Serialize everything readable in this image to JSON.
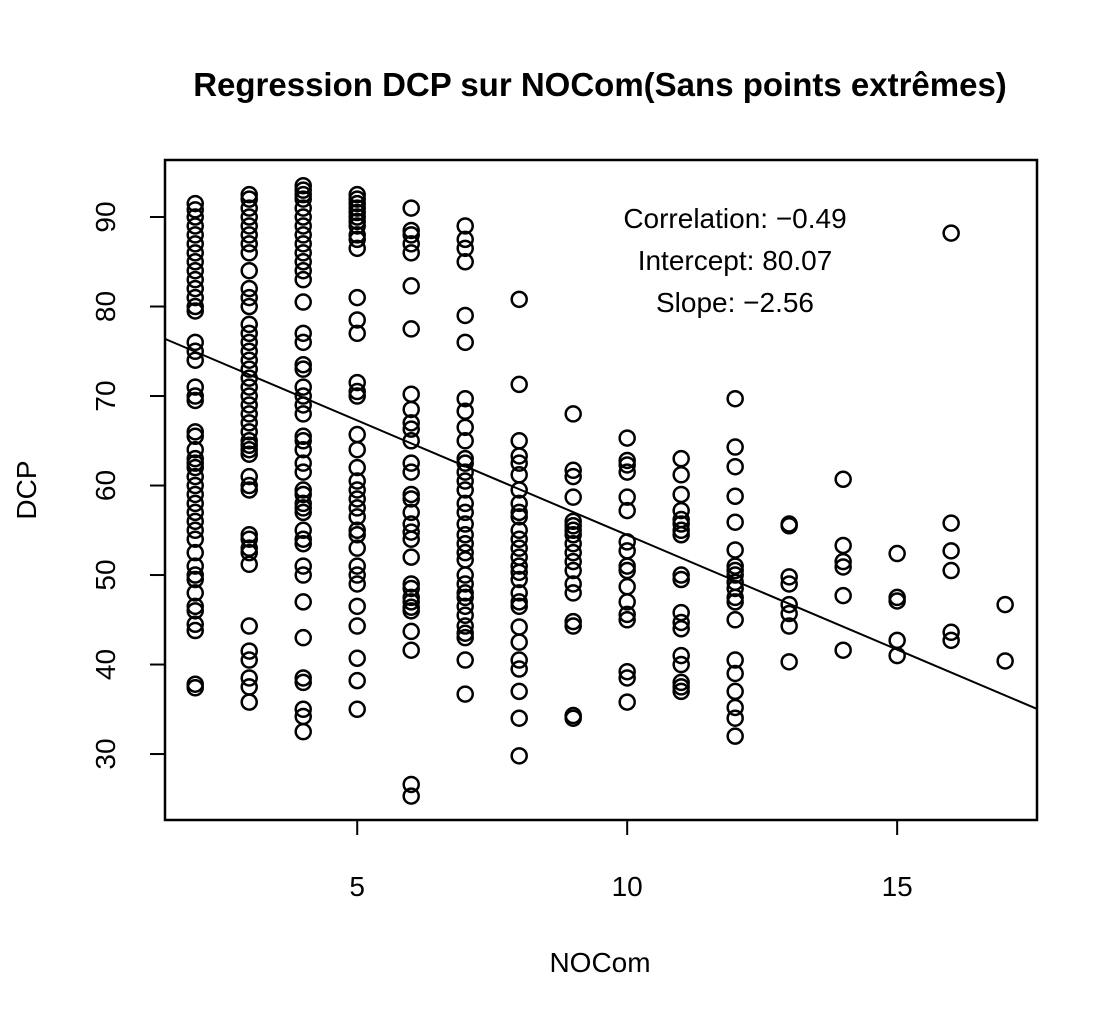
{
  "chart_data": {
    "type": "scatter",
    "title": "Regression DCP sur NOCom(Sans points extrêmes)",
    "x_label": "NOCom",
    "y_label": "DCP",
    "annotations": [
      "Correlation: −0.49",
      "Intercept: 80.07",
      "Slope: −2.56"
    ],
    "fit_line": {
      "intercept": 80.07,
      "slope": -2.56
    },
    "color": "#000000",
    "xlim": [
      1.44,
      17.59
    ],
    "ylim": [
      22.63,
      96.37
    ],
    "xticks": [
      5,
      10,
      15
    ],
    "yticks": [
      30,
      40,
      50,
      60,
      70,
      80,
      90
    ],
    "columns": [
      {
        "x": 2,
        "values": [
          91.5,
          90.8,
          90,
          89,
          88,
          87,
          86,
          85,
          84,
          83,
          82,
          81,
          80,
          79.5,
          76,
          75,
          74,
          71,
          70,
          69.5,
          66,
          65.5,
          64,
          63,
          62.5,
          62,
          61,
          60,
          59,
          58,
          57,
          56,
          55,
          54,
          52.5,
          51,
          50,
          49.5,
          48,
          46.5,
          46,
          44.5,
          43.8,
          37.8,
          37.4
        ]
      },
      {
        "x": 3,
        "values": [
          92.5,
          92,
          91,
          90,
          89,
          88,
          87,
          86,
          84,
          82,
          81,
          80,
          78,
          77,
          76,
          75,
          74,
          73,
          72,
          71,
          70,
          69,
          68,
          67,
          66,
          65,
          64.5,
          64,
          63.5,
          61,
          60,
          59.5,
          54.5,
          54,
          53,
          52.5,
          51.2,
          44.3,
          41.5,
          40.5,
          38.5,
          37.5,
          35.8
        ]
      },
      {
        "x": 4,
        "values": [
          93.5,
          93,
          92.5,
          92,
          91,
          90,
          89,
          88,
          87,
          86,
          85,
          84,
          83,
          80.5,
          77,
          76,
          73.5,
          73,
          71,
          70,
          69,
          68,
          65.5,
          65,
          64,
          62.5,
          61.5,
          59.5,
          59,
          58,
          57.5,
          57,
          55,
          54,
          53.5,
          51,
          50,
          47,
          43,
          38.5,
          38,
          35,
          34.2,
          32.5
        ]
      },
      {
        "x": 5,
        "values": [
          92.5,
          92,
          91.5,
          91,
          90.5,
          90,
          89.5,
          89,
          88,
          87.5,
          86.5,
          81,
          78.5,
          77,
          71.5,
          70.5,
          70,
          65.7,
          64,
          62,
          60.5,
          59.5,
          58.5,
          57.5,
          56.5,
          55,
          54.5,
          53,
          51,
          50,
          49,
          46.5,
          44.3,
          40.7,
          38.2,
          35
        ]
      },
      {
        "x": 6,
        "values": [
          91,
          88.5,
          88,
          87,
          86,
          82.3,
          77.5,
          70.2,
          68.5,
          67,
          66.3,
          65,
          62.5,
          61.5,
          59,
          58.5,
          57,
          55.7,
          54.8,
          54,
          52,
          49,
          48.5,
          47.5,
          47,
          46.4,
          46,
          43.7,
          41.6,
          26.6,
          25.3
        ]
      },
      {
        "x": 7,
        "values": [
          89,
          87.5,
          86.5,
          85,
          79,
          76,
          69.7,
          68.3,
          66.5,
          65,
          63,
          62.5,
          61.5,
          60.5,
          59.5,
          58,
          57,
          55.7,
          54.5,
          53.5,
          52.5,
          51.7,
          50,
          49,
          48,
          47.5,
          46.5,
          45.5,
          44.3,
          43.5,
          43,
          40.5,
          36.7
        ]
      },
      {
        "x": 8,
        "values": [
          80.8,
          71.3,
          65,
          63.3,
          62.5,
          61.2,
          59.5,
          58,
          57,
          56.5,
          55,
          54,
          53,
          52,
          51,
          50.3,
          49.5,
          48,
          47,
          46.5,
          44.2,
          42.5,
          40.5,
          39.5,
          37,
          34,
          29.8
        ]
      },
      {
        "x": 9,
        "values": [
          68,
          61.7,
          61,
          58.7,
          56,
          55.5,
          55,
          54.5,
          53.5,
          52.5,
          51.5,
          50.5,
          49,
          48,
          44.8,
          44.3,
          34.3,
          34
        ]
      },
      {
        "x": 10,
        "values": [
          65.3,
          62.8,
          62.3,
          61.5,
          58.7,
          57.2,
          53.7,
          52.7,
          51,
          50.5,
          48.7,
          47,
          45.6,
          45,
          39.2,
          38.5,
          35.8
        ]
      },
      {
        "x": 11,
        "values": [
          63,
          61.2,
          59,
          57.2,
          56.2,
          55.7,
          55,
          54.5,
          50,
          49.5,
          45.8,
          44.7,
          44,
          41,
          40,
          38,
          37.5,
          37
        ]
      },
      {
        "x": 12,
        "values": [
          69.7,
          64.3,
          62.1,
          58.8,
          55.9,
          52.8,
          51,
          50.5,
          50,
          49.2,
          48.5,
          47.5,
          47,
          45,
          40.5,
          39,
          37,
          35.2,
          34,
          32
        ]
      },
      {
        "x": 13,
        "values": [
          55.7,
          55.5,
          49.8,
          49,
          46.7,
          45.7,
          44.3,
          40.3
        ]
      },
      {
        "x": 14,
        "values": [
          60.7,
          53.3,
          51.5,
          50.9,
          47.7,
          41.6
        ]
      },
      {
        "x": 15,
        "values": [
          52.4,
          47.5,
          47.1,
          42.7,
          41
        ]
      },
      {
        "x": 16,
        "values": [
          88.2,
          55.8,
          52.7,
          50.5,
          43.6,
          42.7
        ]
      },
      {
        "x": 17,
        "values": [
          46.7,
          40.4
        ]
      }
    ]
  }
}
